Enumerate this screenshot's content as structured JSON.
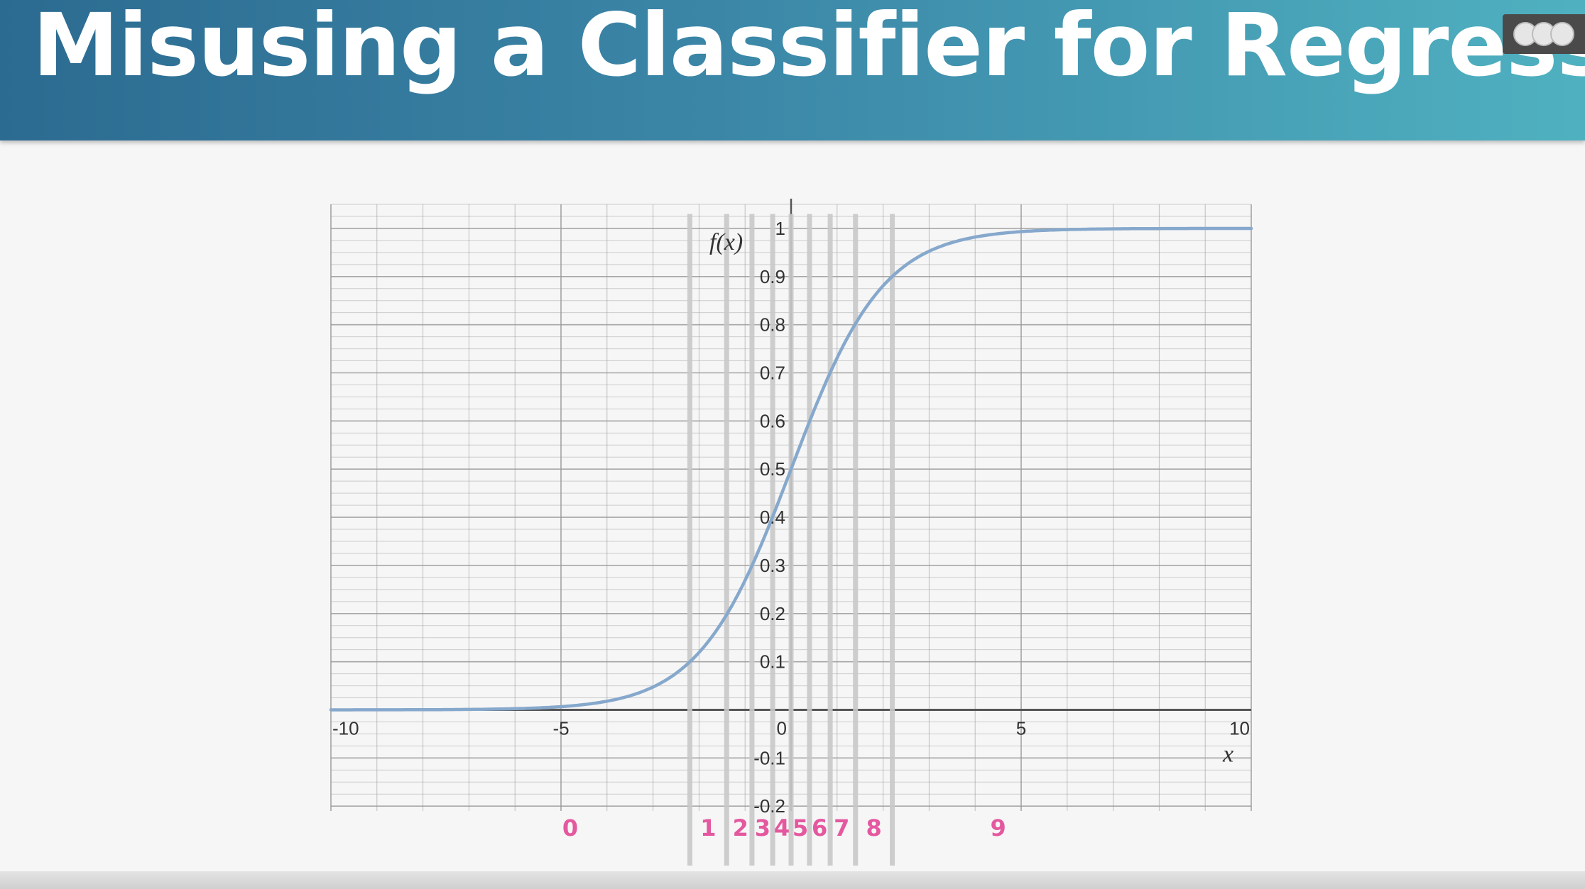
{
  "slide": {
    "title": "Misusing a Classifier for Regression"
  },
  "colors": {
    "curve": "#86a8cc",
    "class_label": "#e4589f",
    "bin_line": "#c9c9c9",
    "grid": "#9a9a9a",
    "banner_start": "#2c6b91",
    "banner_end": "#4fb1c0"
  },
  "chart_data": {
    "type": "line",
    "function": "logistic sigmoid",
    "xlabel": "x",
    "ylabel": "f(x)",
    "xlim": [
      -10,
      10
    ],
    "ylim": [
      -0.2,
      1
    ],
    "x_ticks": [
      {
        "value": -10,
        "label": "-10"
      },
      {
        "value": -5,
        "label": "-5"
      },
      {
        "value": 0,
        "label": "0"
      },
      {
        "value": 5,
        "label": "5"
      },
      {
        "value": 10,
        "label": "10"
      }
    ],
    "y_ticks": [
      {
        "value": 1,
        "label": "1"
      },
      {
        "value": 0.9,
        "label": "0.9"
      },
      {
        "value": 0.8,
        "label": "0.8"
      },
      {
        "value": 0.7,
        "label": "0.7"
      },
      {
        "value": 0.6,
        "label": "0.6"
      },
      {
        "value": 0.5,
        "label": "0.5"
      },
      {
        "value": 0.4,
        "label": "0.4"
      },
      {
        "value": 0.3,
        "label": "0.3"
      },
      {
        "value": 0.2,
        "label": "0.2"
      },
      {
        "value": 0.1,
        "label": "0.1"
      },
      {
        "value": -0.1,
        "label": "-0.1"
      },
      {
        "value": -0.2,
        "label": "-0.2"
      }
    ],
    "grid": true,
    "series": [
      {
        "x": [
          -10,
          -8,
          -6,
          -5,
          -4,
          -3,
          -2.2,
          -1.4,
          -0.85,
          -0.4,
          0,
          0.4,
          0.85,
          1.4,
          2.2,
          3,
          4,
          5,
          6,
          8,
          10
        ],
        "y": [
          4.54e-05,
          0.000335,
          0.00247,
          0.0067,
          0.018,
          0.047,
          0.1,
          0.2,
          0.3,
          0.4,
          0.5,
          0.6,
          0.7,
          0.8,
          0.9,
          0.953,
          0.982,
          0.9933,
          0.9975,
          0.99966,
          0.99995
        ]
      }
    ],
    "bin_boundaries": [
      -2.2,
      -1.4,
      -0.85,
      -0.4,
      0,
      0.4,
      0.85,
      1.4,
      2.2
    ],
    "bin_labels": [
      {
        "label": "0",
        "x": -4.8
      },
      {
        "label": "1",
        "x": -1.8
      },
      {
        "label": "2",
        "x": -1.1
      },
      {
        "label": "3",
        "x": -0.62
      },
      {
        "label": "4",
        "x": -0.2
      },
      {
        "label": "5",
        "x": 0.2
      },
      {
        "label": "6",
        "x": 0.62
      },
      {
        "label": "7",
        "x": 1.1
      },
      {
        "label": "8",
        "x": 1.8
      },
      {
        "label": "9",
        "x": 4.5
      }
    ]
  }
}
